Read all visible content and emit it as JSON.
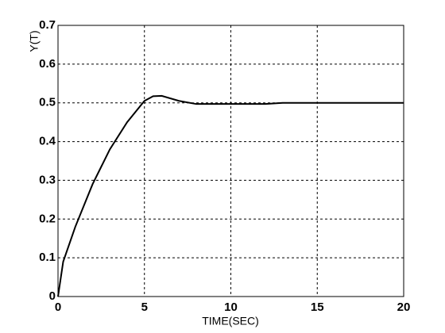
{
  "chart_data": {
    "type": "line",
    "x_label": "TIME(SEC)",
    "y_label": "Y(T)",
    "x": [
      0,
      0.3,
      1,
      2,
      3,
      4,
      5,
      5.5,
      6,
      7,
      8,
      10,
      12,
      13,
      15,
      20
    ],
    "series": [
      {
        "color": "#000000",
        "values": [
          0,
          0.09,
          0.18,
          0.29,
          0.38,
          0.45,
          0.505,
          0.517,
          0.518,
          0.505,
          0.497,
          0.497,
          0.497,
          0.5,
          0.5,
          0.5
        ]
      }
    ],
    "xlim": [
      0,
      20
    ],
    "xticks": [
      0,
      5,
      10,
      15,
      20
    ],
    "ylim": [
      0,
      0.7
    ],
    "yticks": [
      0,
      0.1,
      0.2,
      0.3,
      0.4,
      0.5,
      0.6,
      0.7
    ],
    "grid": true
  }
}
